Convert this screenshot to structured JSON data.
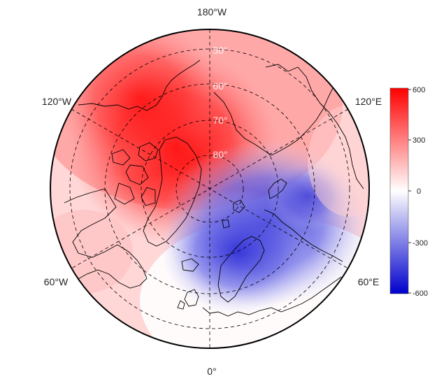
{
  "map": {
    "projection": "north polar stereographic",
    "longitude_labels": [
      "180°W",
      "120°W",
      "120°E",
      "60°W",
      "60°E",
      "0°"
    ],
    "latitude_labels": [
      "50°",
      "60°",
      "70°",
      "80°"
    ],
    "colorscale": {
      "low_color": "#0000cc",
      "mid_color": "#ffffff",
      "high_color": "#ff0000",
      "range": [
        -600,
        600
      ]
    },
    "colorbar_ticks": [
      "600",
      "300",
      "0",
      "-300",
      "-600"
    ],
    "field": {
      "positive_anomaly_region": "Arctic Canada / Greenland / North Pacific",
      "negative_anomaly_region": "North Atlantic / Scandinavia / Western Siberia"
    }
  }
}
